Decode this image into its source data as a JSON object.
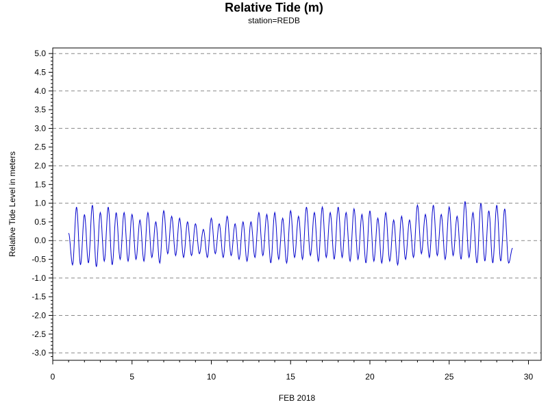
{
  "chart_data": {
    "type": "line",
    "title": "Relative Tide (m)",
    "subtitle": "station=REDB",
    "xlabel": "FEB 2018",
    "ylabel": "Relative Tide Level in meters",
    "xlim": [
      0,
      30.8
    ],
    "ylim": [
      -3.2,
      5.15
    ],
    "x_ticks": [
      0,
      5,
      10,
      15,
      20,
      25,
      30
    ],
    "y_ticks": [
      5.0,
      4.5,
      4.0,
      3.5,
      3.0,
      2.5,
      2.0,
      1.5,
      1.0,
      0.5,
      0.0,
      -0.5,
      -1.0,
      -1.5,
      -2.0,
      -2.5,
      -3.0
    ],
    "y_tick_labels": [
      "5.0",
      "4.5",
      "4.0",
      "3.5",
      "3.0",
      "2.5",
      "2.0",
      "1.5",
      "1.0",
      "0.5",
      "0.0",
      "-0.5",
      "-1.0",
      "-1.5",
      "-2.0",
      "-2.5",
      "-3.0"
    ],
    "grid": "dashed horizontal at every 1.0 m",
    "line_color": "#0000cc",
    "series": [
      {
        "x_start": 1.0,
        "x_end": 29.0,
        "highs": [
          0.9,
          0.7,
          0.95,
          0.75,
          0.9,
          0.75,
          0.75,
          0.7,
          0.55,
          0.75,
          0.5,
          0.8,
          0.65,
          0.6,
          0.5,
          0.45,
          0.3,
          0.6,
          0.45,
          0.65,
          0.45,
          0.5,
          0.5,
          0.75,
          0.7,
          0.75,
          0.6,
          0.8,
          0.65,
          0.9,
          0.75,
          0.9,
          0.75,
          0.9,
          0.75,
          0.85,
          0.7,
          0.8,
          0.6,
          0.75,
          0.55,
          0.65,
          0.55,
          0.95,
          0.7,
          0.95,
          0.7,
          0.9,
          0.65,
          1.05,
          0.75,
          1.0,
          0.8,
          0.95,
          0.85
        ],
        "lows": [
          -0.65,
          -0.65,
          -0.6,
          -0.7,
          -0.55,
          -0.65,
          -0.5,
          -0.55,
          -0.5,
          -0.55,
          -0.45,
          -0.6,
          -0.35,
          -0.4,
          -0.45,
          -0.4,
          -0.35,
          -0.45,
          -0.35,
          -0.45,
          -0.4,
          -0.5,
          -0.55,
          -0.45,
          -0.4,
          -0.6,
          -0.5,
          -0.6,
          -0.45,
          -0.5,
          -0.4,
          -0.55,
          -0.45,
          -0.5,
          -0.45,
          -0.55,
          -0.5,
          -0.6,
          -0.55,
          -0.6,
          -0.55,
          -0.65,
          -0.5,
          -0.45,
          -0.35,
          -0.45,
          -0.4,
          -0.5,
          -0.4,
          -0.5,
          -0.45,
          -0.6,
          -0.55,
          -0.6,
          -0.55,
          -0.6
        ]
      }
    ]
  }
}
